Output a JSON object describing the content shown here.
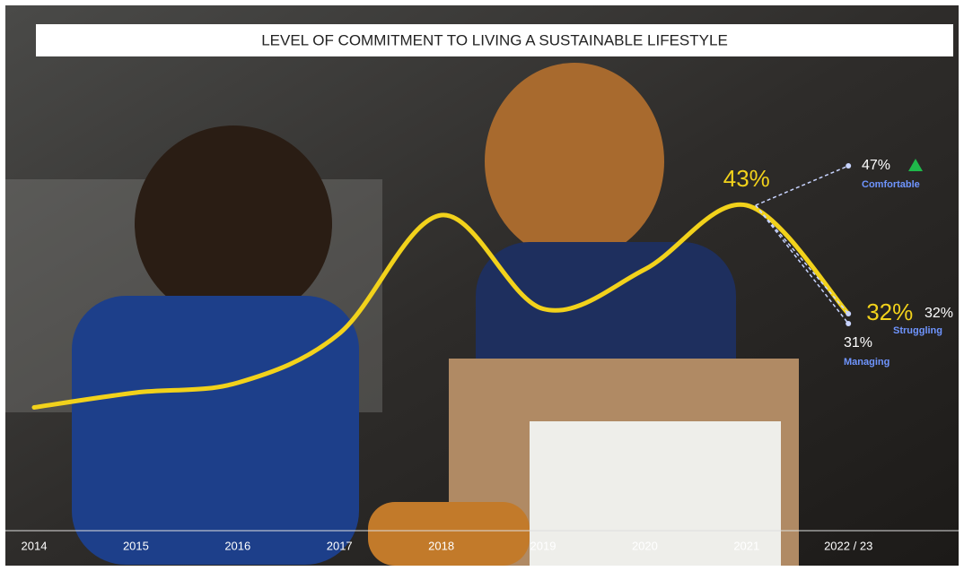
{
  "chart_data": {
    "type": "line",
    "title": "LEVEL OF COMMITMENT TO LIVING A SUSTAINABLE LIFESTYLE",
    "categories": [
      "2014",
      "2015",
      "2016",
      "2017",
      "2018",
      "2019",
      "2020",
      "2021",
      "2022 / 23"
    ],
    "series": [
      {
        "color": "#f2d21b",
        "values": [
          22.5,
          24,
          25,
          30,
          42,
          32.5,
          36.5,
          43,
          32
        ],
        "value_labels": [
          null,
          null,
          null,
          null,
          null,
          null,
          null,
          "43%",
          "32%"
        ]
      }
    ],
    "breakdown": [
      {
        "name": "Comfortable",
        "value": 47,
        "label": "47%"
      },
      {
        "name": "Struggling",
        "value": 32,
        "label": "32%"
      },
      {
        "name": "Managing",
        "value": 31,
        "label": "31%"
      }
    ],
    "ylim": [
      15,
      50
    ]
  }
}
